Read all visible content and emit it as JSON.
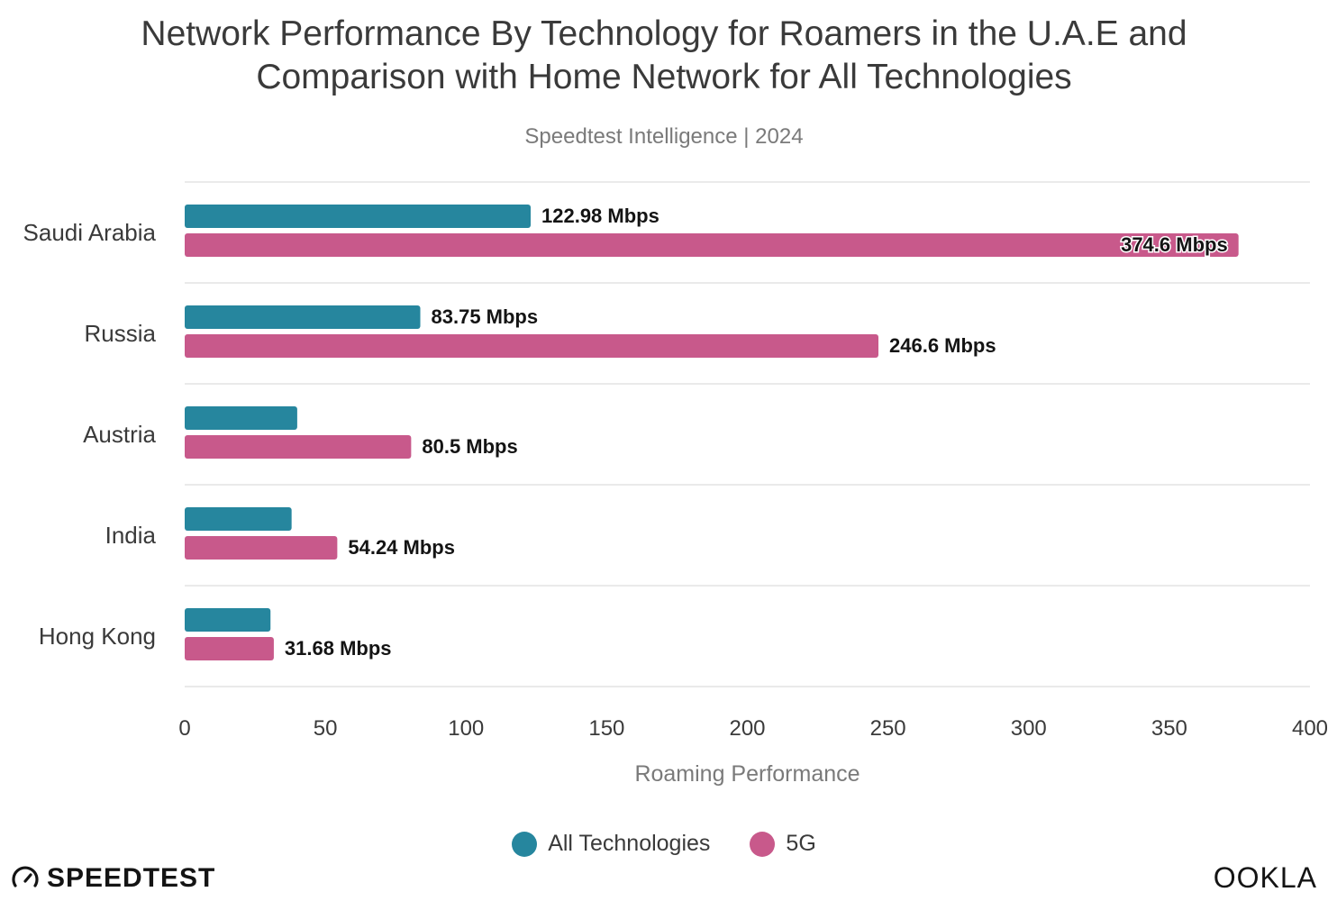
{
  "header": {
    "title_line1": "Network Performance By Technology for Roamers in the U.A.E and",
    "title_line2": "Comparison with Home Network for All Technologies",
    "subtitle": "Speedtest Intelligence | 2024"
  },
  "chart_data": {
    "type": "bar",
    "orientation": "horizontal",
    "categories": [
      "Saudi Arabia",
      "Russia",
      "Austria",
      "India",
      "Hong Kong"
    ],
    "series": [
      {
        "name": "All Technologies",
        "color": "#26869e",
        "values": [
          122.98,
          83.75,
          40.0,
          38.0,
          30.5
        ],
        "labels": [
          "122.98 Mbps",
          "83.75 Mbps",
          "",
          "",
          ""
        ]
      },
      {
        "name": "5G",
        "color": "#c8598b",
        "values": [
          374.6,
          246.6,
          80.5,
          54.24,
          31.68
        ],
        "labels": [
          "374.6 Mbps",
          "246.6 Mbps",
          "80.5 Mbps",
          "54.24 Mbps",
          "31.68 Mbps"
        ]
      }
    ],
    "xlabel": "Roaming Performance",
    "xlim": [
      0,
      400
    ],
    "xticks": [
      0,
      50,
      100,
      150,
      200,
      250,
      300,
      350,
      400
    ],
    "grid": "horizontal separators between categories",
    "legend_position": "bottom-center"
  },
  "brand": {
    "left_logo_text": "SPEEDTEST",
    "right_logo_text": "OOKLA"
  },
  "colors": {
    "all_technologies": "#26869e",
    "five_g": "#c8598b",
    "grid": "#e3e3e3"
  }
}
